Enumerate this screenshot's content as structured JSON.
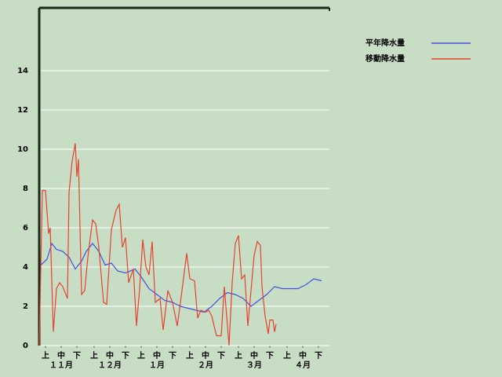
{
  "chart_data": {
    "type": "line",
    "series": [
      {
        "name": "平年降水量",
        "color": "#4050e0",
        "x": [
          1,
          5,
          8,
          11,
          15,
          19,
          23,
          27,
          30,
          34,
          38,
          42,
          46,
          50,
          55,
          61,
          65,
          70,
          75,
          80,
          85,
          90,
          95,
          100,
          105,
          110,
          115,
          120,
          125,
          130,
          135,
          140,
          145,
          150,
          155,
          160,
          165,
          170,
          175,
          180
        ],
        "values": [
          4.1,
          4.4,
          5.2,
          4.9,
          4.8,
          4.5,
          3.9,
          4.3,
          4.8,
          5.2,
          4.8,
          4.1,
          4.2,
          3.8,
          3.7,
          3.9,
          3.5,
          2.9,
          2.6,
          2.3,
          2.2,
          2.0,
          1.9,
          1.8,
          1.7,
          2.0,
          2.4,
          2.7,
          2.6,
          2.4,
          2.0,
          2.3,
          2.6,
          3.0,
          2.9,
          2.9,
          2.9,
          3.1,
          3.4,
          3.3
        ]
      },
      {
        "name": "移動降水量",
        "color": "#e84030",
        "x": [
          0,
          2,
          4,
          6,
          7,
          9,
          11,
          13,
          15,
          18,
          19,
          21,
          23,
          24,
          25,
          27,
          29,
          31,
          34,
          36,
          38,
          41,
          43,
          46,
          49,
          51,
          53,
          55,
          57,
          60,
          62,
          64,
          66,
          68,
          70,
          72,
          74,
          77,
          79,
          82,
          85,
          88,
          91,
          94,
          96,
          99,
          101,
          103,
          106,
          108,
          110,
          113,
          116,
          118,
          121,
          123,
          125,
          127,
          129,
          131,
          133,
          135,
          137,
          139,
          141,
          142,
          144,
          146,
          147,
          149,
          150,
          151
        ],
        "values": [
          0,
          7.9,
          7.9,
          5.7,
          6.0,
          0.7,
          2.9,
          3.2,
          3.0,
          2.4,
          7.8,
          9.4,
          10.3,
          8.6,
          9.5,
          2.6,
          2.8,
          4.5,
          6.4,
          6.2,
          5.0,
          2.2,
          2.1,
          5.9,
          6.9,
          7.2,
          5.0,
          5.5,
          3.2,
          3.9,
          1.0,
          2.9,
          5.4,
          4.0,
          3.6,
          5.3,
          2.2,
          2.4,
          0.8,
          2.8,
          2.2,
          1.0,
          2.8,
          4.7,
          3.4,
          3.3,
          1.4,
          1.8,
          1.7,
          1.8,
          1.5,
          0.5,
          0.5,
          3.0,
          0,
          3.2,
          5.2,
          5.6,
          3.4,
          3.6,
          1.0,
          2.8,
          4.6,
          5.3,
          5.1,
          3.0,
          1.5,
          0.6,
          1.3,
          1.3,
          0.7,
          1.1
        ]
      }
    ],
    "xlim": [
      0,
      185
    ],
    "xticks": [
      {
        "value": 4,
        "label": "上"
      },
      {
        "value": 14,
        "label": "中"
      },
      {
        "value": 24,
        "label": "下"
      },
      {
        "value": 35,
        "label": "上"
      },
      {
        "value": 45,
        "label": "中"
      },
      {
        "value": 55,
        "label": "下"
      },
      {
        "value": 65,
        "label": "上"
      },
      {
        "value": 75,
        "label": "中"
      },
      {
        "value": 85,
        "label": "下"
      },
      {
        "value": 96,
        "label": "上"
      },
      {
        "value": 106,
        "label": "中"
      },
      {
        "value": 116,
        "label": "下"
      },
      {
        "value": 127,
        "label": "上"
      },
      {
        "value": 137,
        "label": "中"
      },
      {
        "value": 147,
        "label": "下"
      },
      {
        "value": 158,
        "label": "上"
      },
      {
        "value": 168,
        "label": "中"
      },
      {
        "value": 178,
        "label": "下"
      }
    ],
    "month_labels": [
      {
        "value": 14,
        "label": "１１月"
      },
      {
        "value": 45,
        "label": "１２月"
      },
      {
        "value": 75,
        "label": "１月"
      },
      {
        "value": 106,
        "label": "２月"
      },
      {
        "value": 137,
        "label": "３月"
      },
      {
        "value": 168,
        "label": "４月"
      }
    ],
    "ylim": [
      0,
      17.2
    ],
    "yticks": [
      0,
      2,
      4,
      6,
      8,
      10,
      12,
      14
    ],
    "grid": true
  }
}
